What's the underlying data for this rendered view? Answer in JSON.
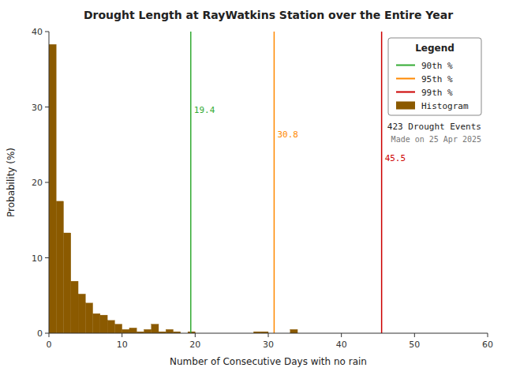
{
  "chart_data": {
    "type": "histogram",
    "title": "Drought Length at RayWatkins Station over the Entire Year",
    "x_label": "Number of Consecutive Days with no rain",
    "y_label": "Probability (%)",
    "xlim": [
      0,
      60
    ],
    "ylim": [
      0,
      40
    ],
    "xticks": [
      0,
      10,
      20,
      30,
      40,
      50,
      60
    ],
    "yticks": [
      0,
      10,
      20,
      30,
      40
    ],
    "grid": false,
    "name": "Histogram",
    "color": "#8B5A00",
    "bins": [
      0,
      1,
      2,
      3,
      4,
      5,
      6,
      7,
      8,
      9,
      10,
      11,
      12,
      13,
      14,
      15,
      16,
      17,
      18,
      19,
      20,
      21,
      22,
      23,
      24,
      25,
      26,
      27,
      28,
      29,
      30,
      31,
      32,
      33,
      34,
      35,
      36,
      37,
      38,
      39,
      40,
      41,
      42,
      43,
      44,
      45,
      46,
      47,
      48,
      49,
      50,
      51,
      52,
      53,
      54,
      55,
      56,
      57,
      58,
      59,
      60
    ],
    "values": [
      38.3,
      17.5,
      13.3,
      6.9,
      5.2,
      4.0,
      2.6,
      2.4,
      1.7,
      1.2,
      0.5,
      0.7,
      0.2,
      0.5,
      1.2,
      0.2,
      0.5,
      0.2,
      0.0,
      0.2,
      0.0,
      0.0,
      0.0,
      0.0,
      0.0,
      0.0,
      0.0,
      0.0,
      0.2,
      0.2,
      0.0,
      0.0,
      0.0,
      0.5,
      0.0,
      0.0,
      0.0,
      0.0,
      0.0,
      0.0,
      0.0,
      0.0,
      0.0,
      0.0,
      0.0,
      0.0,
      0.0,
      0.0,
      0.0,
      0.0,
      0.0,
      0.0,
      0.0,
      0.0,
      0.0,
      0.0,
      0.0,
      0.0,
      0.0,
      0.0
    ],
    "lines": [
      {
        "name": "90th %",
        "x": 19.4,
        "color": "#33AA33"
      },
      {
        "name": "95th %",
        "x": 30.8,
        "color": "#FF8800"
      },
      {
        "name": "99th %",
        "x": 45.5,
        "color": "#CC0000"
      }
    ],
    "legend": "upper right",
    "legend_title": "Legend",
    "annotations": [
      "423 Drought Events",
      "Made on 25 Apr 2025"
    ]
  }
}
